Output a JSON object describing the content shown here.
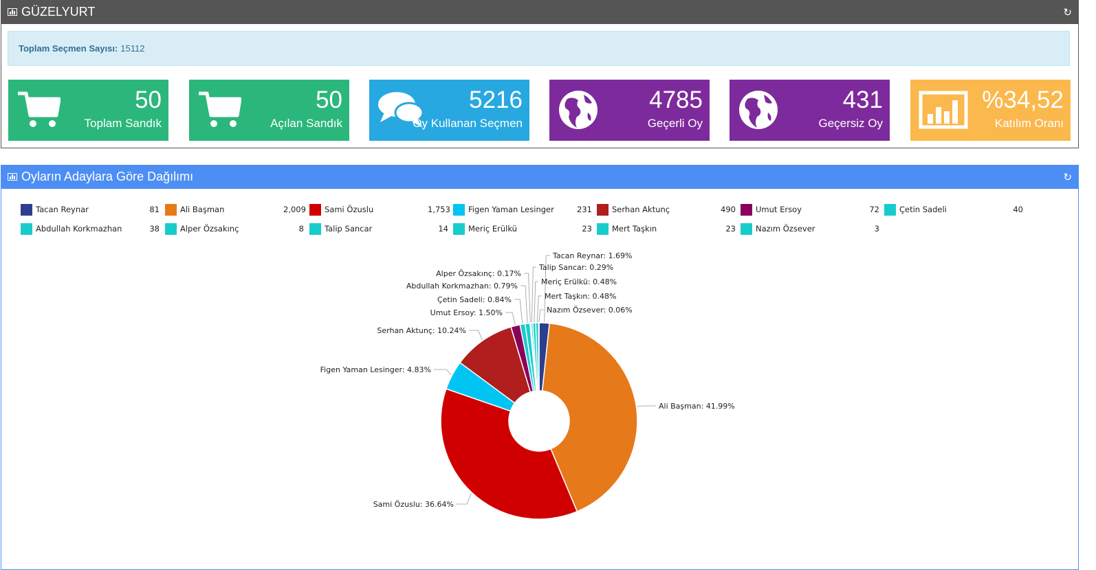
{
  "top_panel": {
    "title": "GÜZELYURT",
    "info_label": "Toplam Seçmen Sayısı:",
    "info_value": "15112",
    "tiles": [
      {
        "value": "50",
        "label": "Toplam Sandık",
        "icon": "cart-icon",
        "color": "#2bb77b"
      },
      {
        "value": "50",
        "label": "Açılan Sandık",
        "icon": "cart-icon",
        "color": "#2bb77b"
      },
      {
        "value": "5216",
        "label": "Oy Kullanan Seçmen",
        "icon": "comments-icon",
        "color": "#28a8e0"
      },
      {
        "value": "4785",
        "label": "Geçerli Oy",
        "icon": "globe-icon",
        "color": "#7d2a9c"
      },
      {
        "value": "431",
        "label": "Geçersiz Oy",
        "icon": "globe-icon",
        "color": "#7d2a9c"
      },
      {
        "value": "%34,52",
        "label": "Katılım Oranı",
        "icon": "bar-chart-icon",
        "color": "#fbb84d"
      }
    ]
  },
  "chart_panel": {
    "title": "Oyların Adaylara Göre Dağılımı"
  },
  "chart_data": {
    "type": "pie",
    "donut": true,
    "series": [
      {
        "name": "Tacan Reynar",
        "value": 81,
        "display": "81",
        "color": "#2c3f8f",
        "label": "Tacan Reynar: 1.69%"
      },
      {
        "name": "Ali Başman",
        "value": 2009,
        "display": "2,009",
        "color": "#e6791a",
        "label": "Ali Başman: 41.99%"
      },
      {
        "name": "Sami Özuslu",
        "value": 1753,
        "display": "1,753",
        "color": "#d10000",
        "label": "Sami Özuslu: 36.64%"
      },
      {
        "name": "Figen Yaman Lesinger",
        "value": 231,
        "display": "231",
        "color": "#00c5f2",
        "label": "Figen Yaman Lesinger: 4.83%"
      },
      {
        "name": "Serhan Aktunç",
        "value": 490,
        "display": "490",
        "color": "#b01e1e",
        "label": "Serhan Aktunç: 10.24%"
      },
      {
        "name": "Umut Ersoy",
        "value": 72,
        "display": "72",
        "color": "#8a005a",
        "label": "Umut Ersoy: 1.50%"
      },
      {
        "name": "Çetin Sadeli",
        "value": 40,
        "display": "40",
        "color": "#18cccc",
        "label": "Çetin Sadeli: 0.84%"
      },
      {
        "name": "Abdullah Korkmazhan",
        "value": 38,
        "display": "38",
        "color": "#18cccc",
        "label": "Abdullah Korkmazhan: 0.79%"
      },
      {
        "name": "Alper Özsakınç",
        "value": 8,
        "display": "8",
        "color": "#18cccc",
        "label": "Alper Özsakınç: 0.17%"
      },
      {
        "name": "Talip Sancar",
        "value": 14,
        "display": "14",
        "color": "#18cccc",
        "label": "Talip Sancar: 0.29%"
      },
      {
        "name": "Meriç Erülkü",
        "value": 23,
        "display": "23",
        "color": "#18cccc",
        "label": "Meriç Erülkü: 0.48%"
      },
      {
        "name": "Mert Taşkın",
        "value": 23,
        "display": "23",
        "color": "#18cccc",
        "label": "Mert Taşkın: 0.48%"
      },
      {
        "name": "Nazım Özsever",
        "value": 3,
        "display": "3",
        "color": "#18cccc",
        "label": "Nazım Özsever: 0.06%"
      }
    ]
  }
}
